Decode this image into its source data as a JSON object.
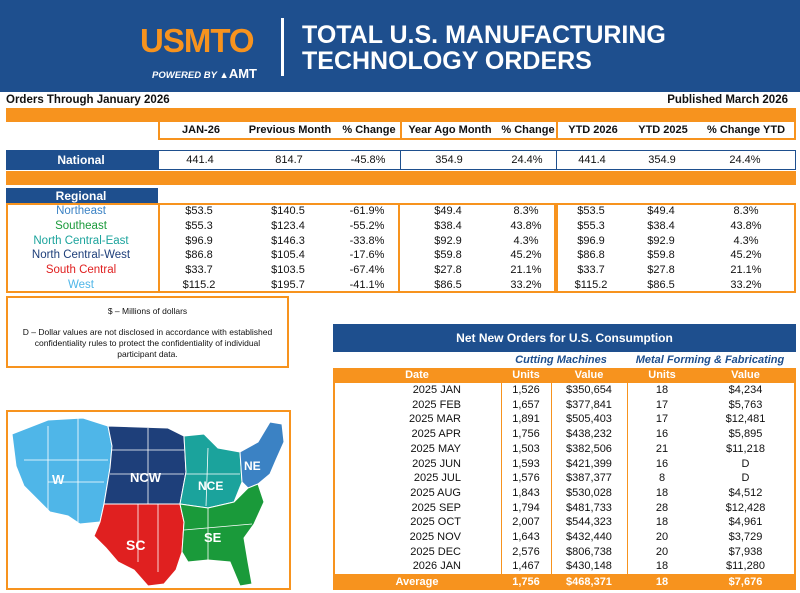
{
  "header": {
    "logo": "USMTO",
    "powered_by": "POWERED BY",
    "powered_brand": "AMT",
    "title_line1": "TOTAL U.S. MANUFACTURING",
    "title_line2": "TECHNOLOGY ORDERS"
  },
  "subheader": {
    "left": "Orders Through January 2026",
    "right": "Published March 2026"
  },
  "columns": [
    "JAN-26",
    "Previous Month",
    "% Change",
    "Year Ago Month",
    "% Change",
    "YTD 2026",
    "YTD 2025",
    "% Change YTD"
  ],
  "national": {
    "label": "National",
    "values": [
      "441.4",
      "814.7",
      "-45.8%",
      "354.9",
      "24.4%",
      "441.4",
      "354.9",
      "24.4%"
    ]
  },
  "regional": {
    "label": "Regional",
    "rows": [
      {
        "name": "Northeast",
        "color": "#3b82c4",
        "values": [
          "$53.5",
          "$140.5",
          "-61.9%",
          "$49.4",
          "8.3%",
          "$53.5",
          "$49.4",
          "8.3%"
        ]
      },
      {
        "name": "Southeast",
        "color": "#1a9a3a",
        "values": [
          "$55.3",
          "$123.4",
          "-55.2%",
          "$38.4",
          "43.8%",
          "$55.3",
          "$38.4",
          "43.8%"
        ]
      },
      {
        "name": "North Central-East",
        "color": "#1ba39c",
        "values": [
          "$96.9",
          "$146.3",
          "-33.8%",
          "$92.9",
          "4.3%",
          "$96.9",
          "$92.9",
          "4.3%"
        ]
      },
      {
        "name": "North Central-West",
        "color": "#1e3f7a",
        "values": [
          "$86.8",
          "$105.4",
          "-17.6%",
          "$59.8",
          "45.2%",
          "$86.8",
          "$59.8",
          "45.2%"
        ]
      },
      {
        "name": "South Central",
        "color": "#e02020",
        "values": [
          "$33.7",
          "$103.5",
          "-67.4%",
          "$27.8",
          "21.1%",
          "$33.7",
          "$27.8",
          "21.1%"
        ]
      },
      {
        "name": "West",
        "color": "#4fb6e8",
        "values": [
          "$115.2",
          "$195.7",
          "-41.1%",
          "$86.5",
          "33.2%",
          "$115.2",
          "$86.5",
          "33.2%"
        ]
      }
    ]
  },
  "notes": {
    "line1": "$ – Millions of dollars",
    "line2": "D – Dollar values are not disclosed in accordance with established confidentiality rules to protect the confidentiality of individual participant data."
  },
  "map": {
    "labels": [
      "W",
      "NCW",
      "NCE",
      "NE",
      "SC",
      "SE"
    ]
  },
  "orders": {
    "title": "Net New Orders for U.S. Consumption",
    "group1": "Cutting Machines",
    "group2": "Metal Forming & Fabricating",
    "headers": [
      "Date",
      "Units",
      "Value",
      "Units",
      "Value"
    ],
    "rows": [
      [
        "2025 JAN",
        "1,526",
        "$350,654",
        "18",
        "$4,234"
      ],
      [
        "2025 FEB",
        "1,657",
        "$377,841",
        "17",
        "$5,763"
      ],
      [
        "2025 MAR",
        "1,891",
        "$505,403",
        "17",
        "$12,481"
      ],
      [
        "2025 APR",
        "1,756",
        "$438,232",
        "16",
        "$5,895"
      ],
      [
        "2025 MAY",
        "1,503",
        "$382,506",
        "21",
        "$11,218"
      ],
      [
        "2025 JUN",
        "1,593",
        "$421,399",
        "16",
        "D"
      ],
      [
        "2025 JUL",
        "1,576",
        "$387,377",
        "8",
        "D"
      ],
      [
        "2025 AUG",
        "1,843",
        "$530,028",
        "18",
        "$4,512"
      ],
      [
        "2025 SEP",
        "1,794",
        "$481,733",
        "28",
        "$12,428"
      ],
      [
        "2025 OCT",
        "2,007",
        "$544,323",
        "18",
        "$4,961"
      ],
      [
        "2025 NOV",
        "1,643",
        "$432,440",
        "20",
        "$3,729"
      ],
      [
        "2025 DEC",
        "2,576",
        "$806,738",
        "20",
        "$7,938"
      ],
      [
        "2026 JAN",
        "1,467",
        "$430,148",
        "18",
        "$11,280"
      ]
    ],
    "average": [
      "Average",
      "1,756",
      "$468,371",
      "18",
      "$7,676"
    ]
  }
}
